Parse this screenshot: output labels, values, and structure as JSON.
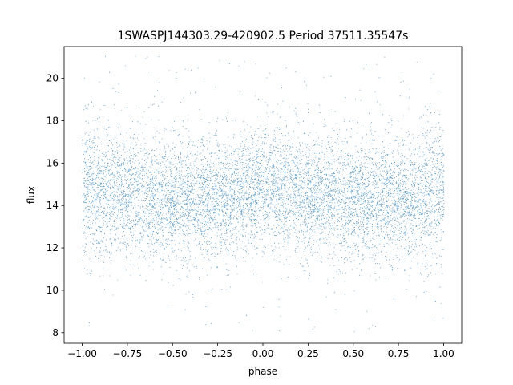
{
  "chart_data": {
    "type": "scatter",
    "title": "1SWASPJ144303.29-420902.5 Period 37511.35547s",
    "xlabel": "phase",
    "ylabel": "flux",
    "xlim": [
      -1.1,
      1.1
    ],
    "ylim": [
      7.5,
      21.5
    ],
    "xticks": [
      -1.0,
      -0.75,
      -0.5,
      -0.25,
      0.0,
      0.25,
      0.5,
      0.75,
      1.0
    ],
    "xtick_labels": [
      "−1.00",
      "−0.75",
      "−0.50",
      "−0.25",
      "0.00",
      "0.25",
      "0.50",
      "0.75",
      "1.00"
    ],
    "yticks": [
      8,
      10,
      12,
      14,
      16,
      18,
      20
    ],
    "ytick_labels": [
      "8",
      "10",
      "12",
      "14",
      "16",
      "18",
      "20"
    ],
    "grid": false,
    "point_color": "#1f77b4",
    "x_range": [
      -1.0,
      1.0
    ],
    "y_clip": [
      8.0,
      21.3
    ],
    "trend": {
      "x": [
        -1.0,
        -0.75,
        -0.5,
        -0.25,
        0.0,
        0.25,
        0.5,
        0.75,
        1.0
      ],
      "median_flux": [
        14.8,
        14.6,
        14.3,
        14.4,
        14.8,
        14.6,
        14.3,
        14.4,
        14.8
      ]
    },
    "scatter_sd": 1.4
  }
}
